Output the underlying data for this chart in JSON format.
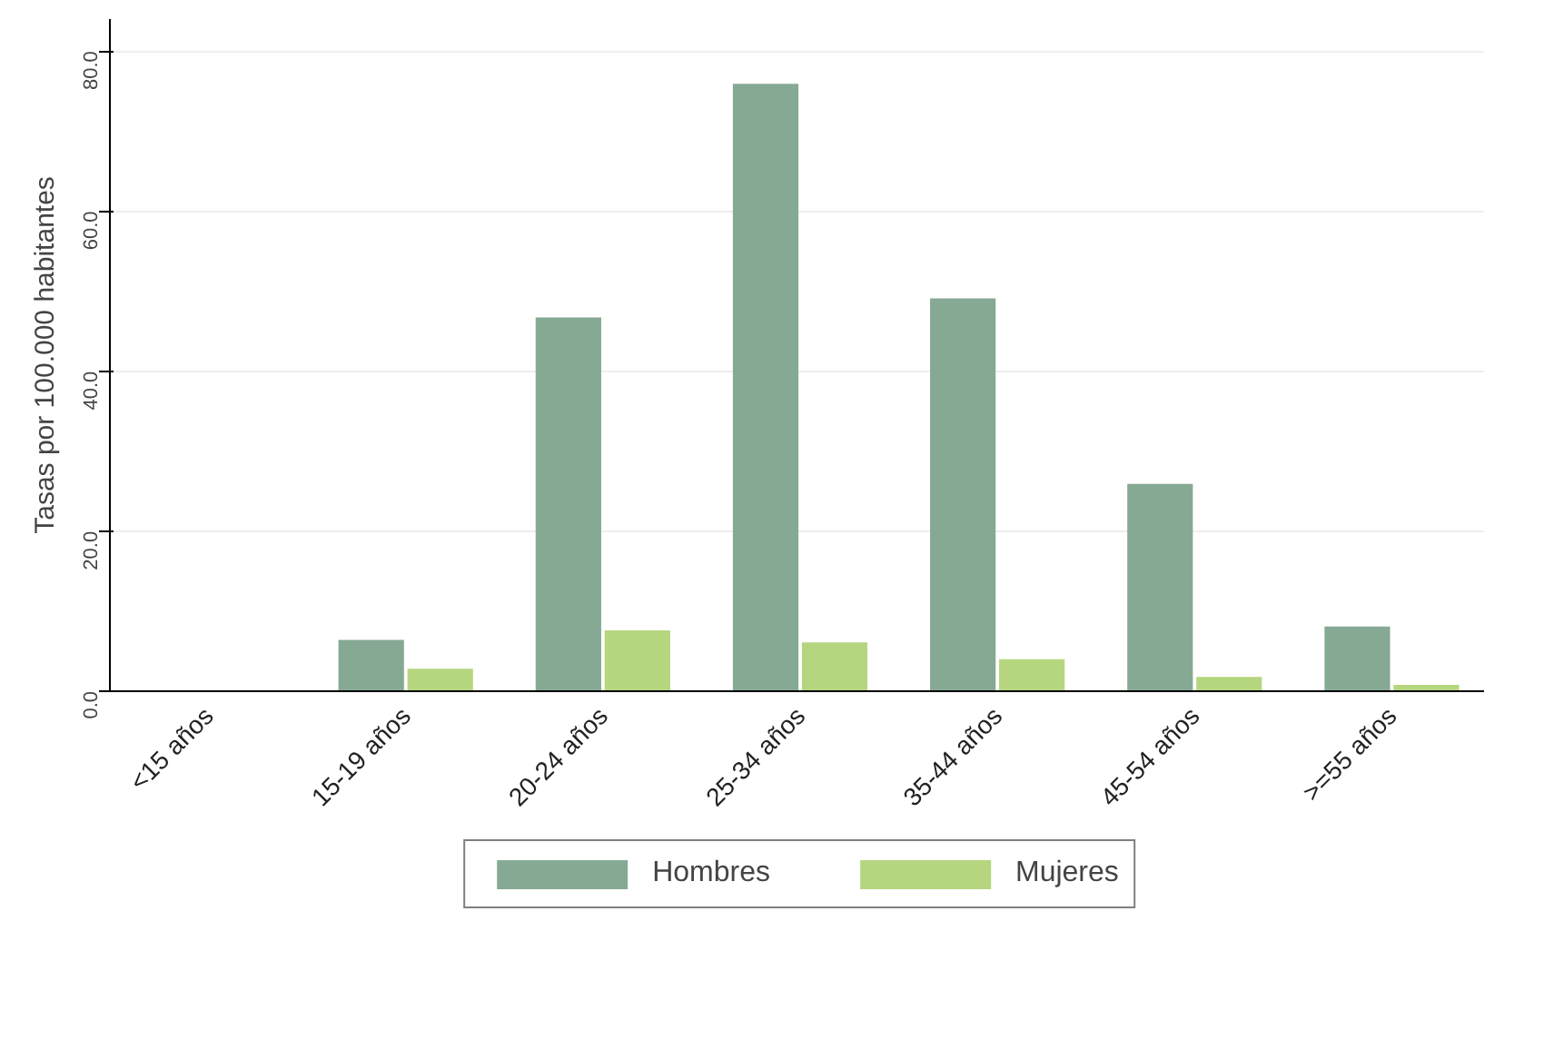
{
  "chart_data": {
    "type": "bar",
    "ylabel": "Tasas por 100.000 habitantes",
    "categories": [
      "<15 años",
      "15-19 años",
      "20-24 años",
      "25-34 años",
      "35-44 años",
      "45-54 años",
      ">=55 años"
    ],
    "series": [
      {
        "name": "Hombres",
        "color": "#86a994",
        "values": [
          0,
          6.4,
          46.7,
          75.9,
          49.1,
          25.9,
          8.1
        ]
      },
      {
        "name": "Mujeres",
        "color": "#b5d67f",
        "values": [
          0,
          2.8,
          7.6,
          6.1,
          4.0,
          1.8,
          0.8
        ]
      }
    ],
    "ylim": [
      0,
      84
    ],
    "yticks": [
      {
        "value": 0,
        "label": "0.0"
      },
      {
        "value": 20,
        "label": "20.0"
      },
      {
        "value": 40,
        "label": "40.0"
      },
      {
        "value": 60,
        "label": "60.0"
      },
      {
        "value": 80,
        "label": "80.0"
      }
    ],
    "grid": "y",
    "legend": "bottom"
  }
}
